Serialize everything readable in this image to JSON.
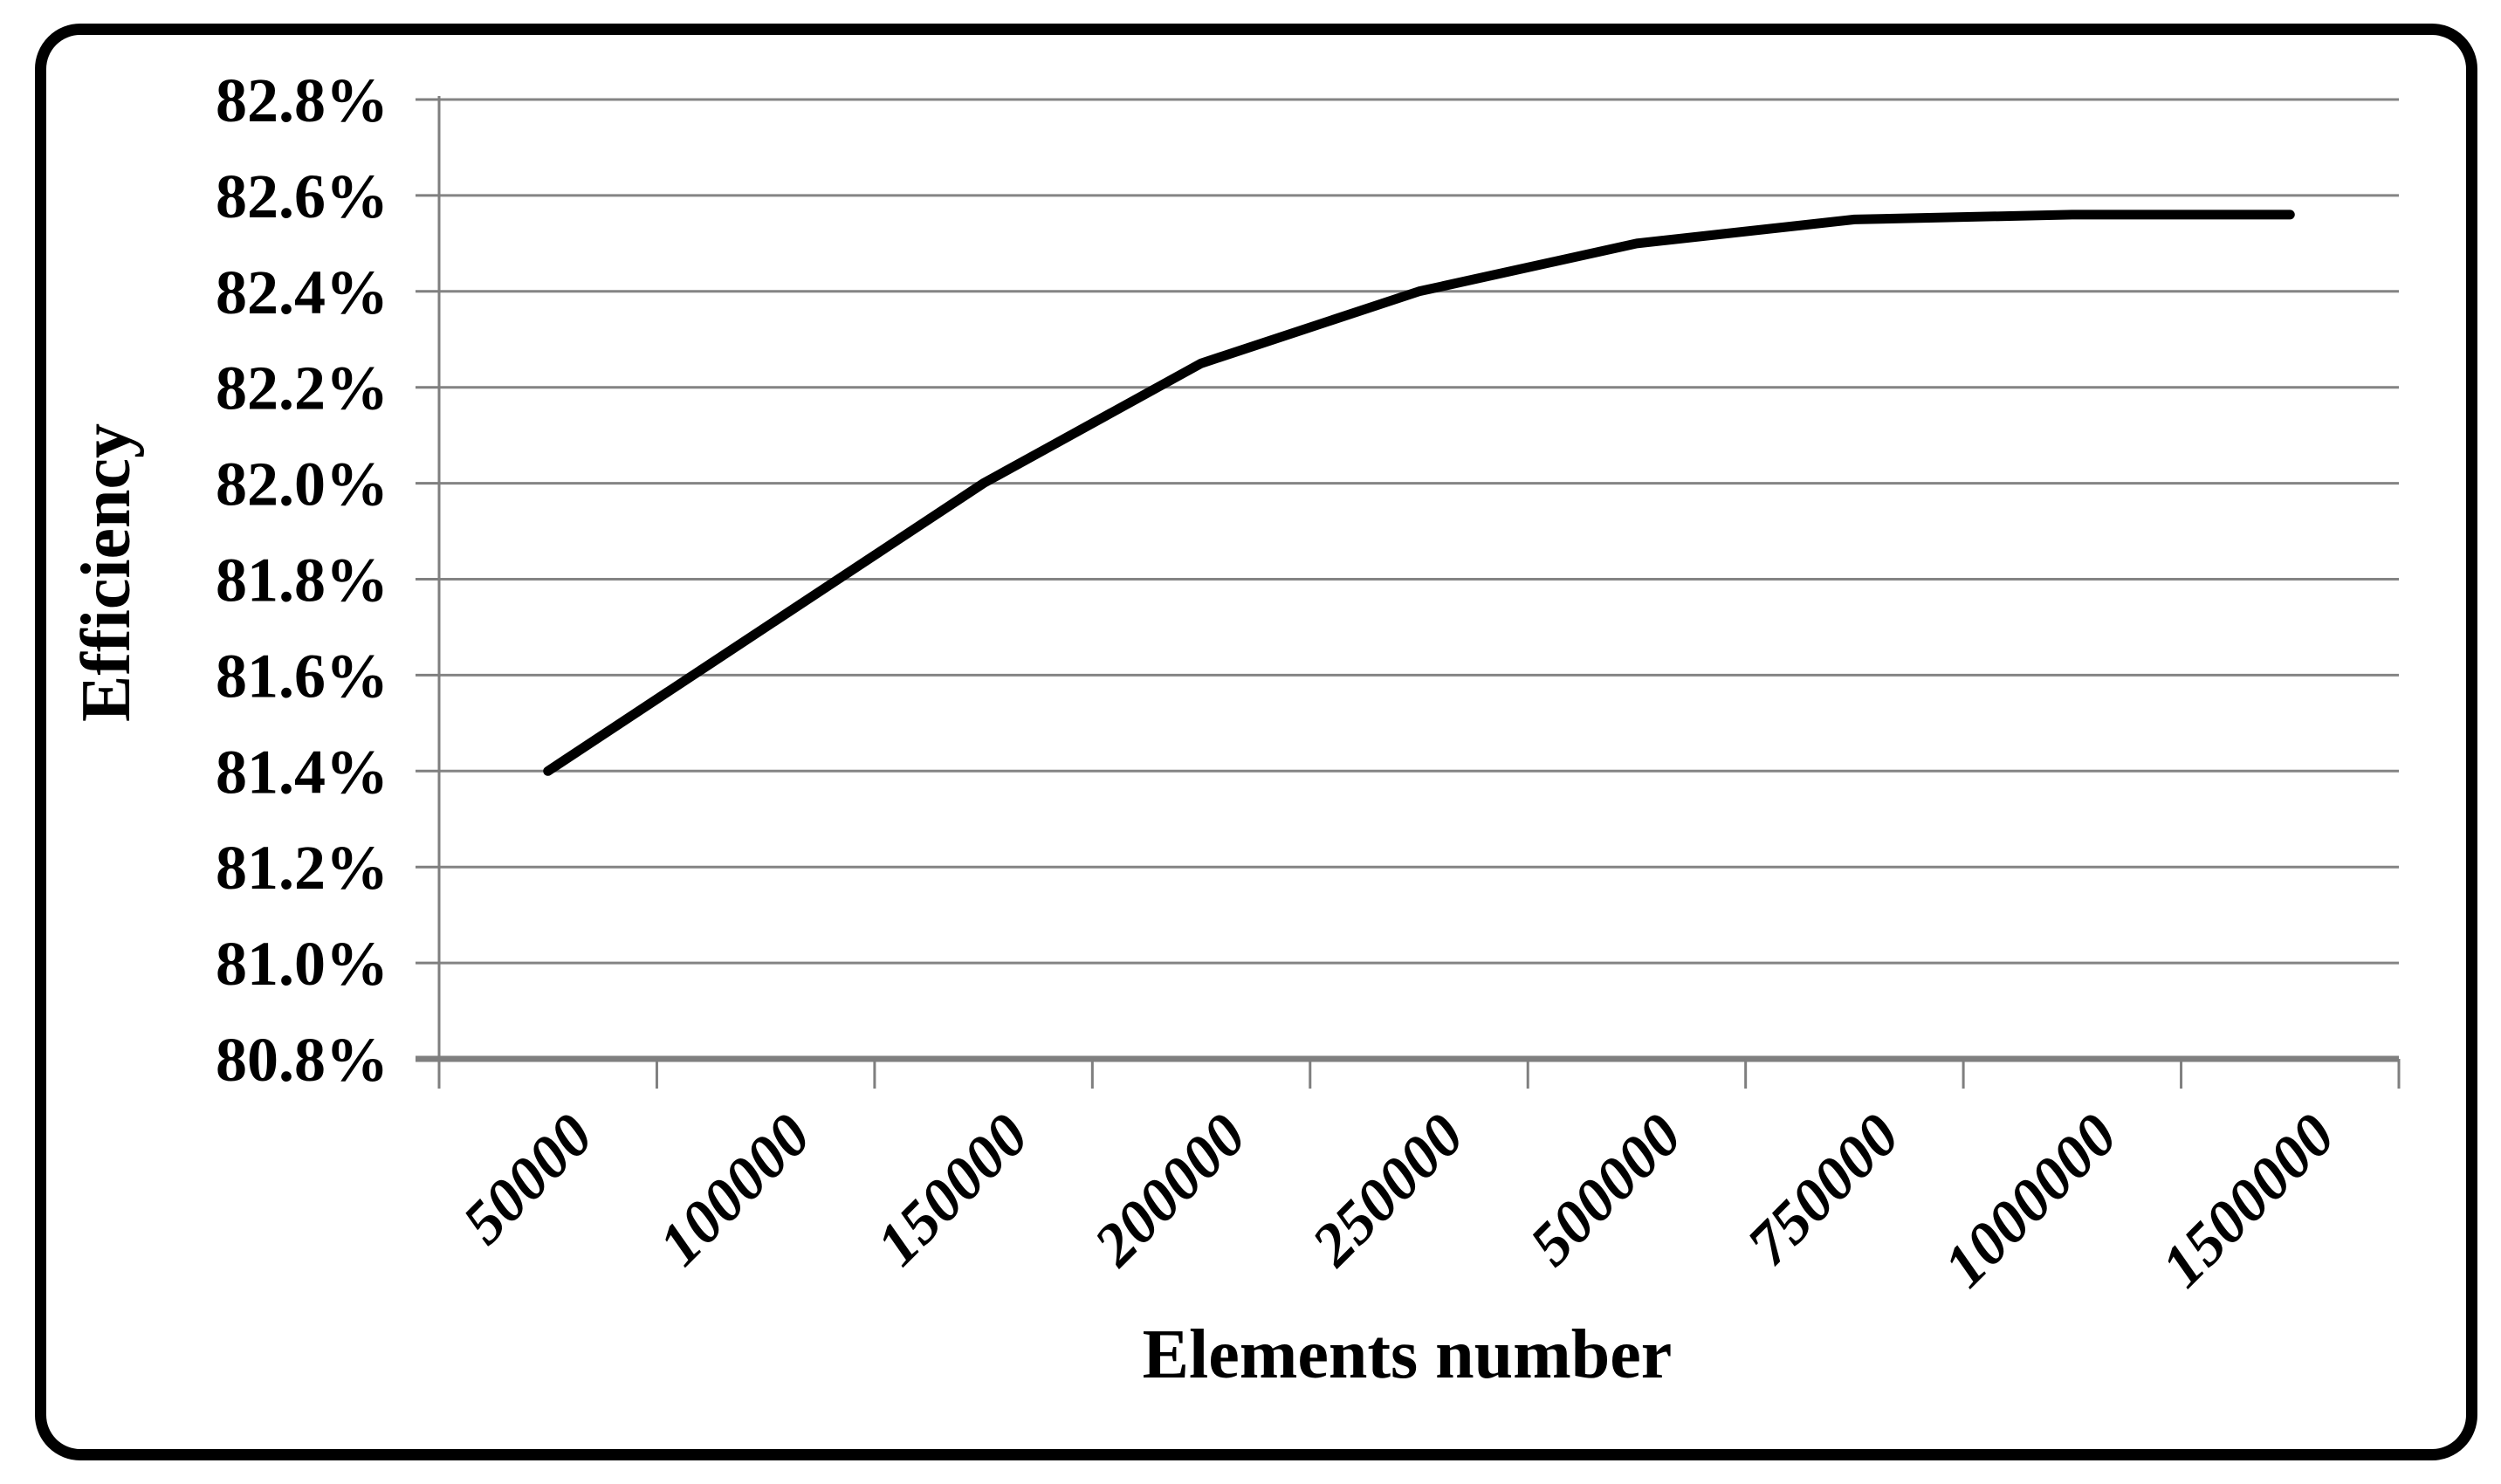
{
  "chart_data": {
    "type": "line",
    "title": "",
    "xlabel": "Elements number",
    "ylabel": "Efficiency",
    "categories": [
      "50000",
      "100000",
      "150000",
      "200000",
      "250000",
      "500000",
      "750000",
      "1000000",
      "1500000"
    ],
    "series": [
      {
        "name": "Efficiency",
        "values": [
          81.4,
          81.7,
          82.0,
          82.25,
          82.4,
          82.5,
          82.55,
          82.56,
          82.56
        ]
      }
    ],
    "y_tick_labels": [
      "80.8%",
      "81.0%",
      "81.2%",
      "81.4%",
      "81.6%",
      "81.8%",
      "82.0%",
      "82.2%",
      "82.4%",
      "82.6%",
      "82.8%"
    ],
    "ylim": [
      80.8,
      82.8
    ],
    "grid": true,
    "legend": false,
    "x_tick_style": "rotated-45-bold-italic",
    "line_color": "#000000",
    "axis_color": "#7f7f7f",
    "gridline_color": "#848484",
    "border_color": "#000000"
  }
}
